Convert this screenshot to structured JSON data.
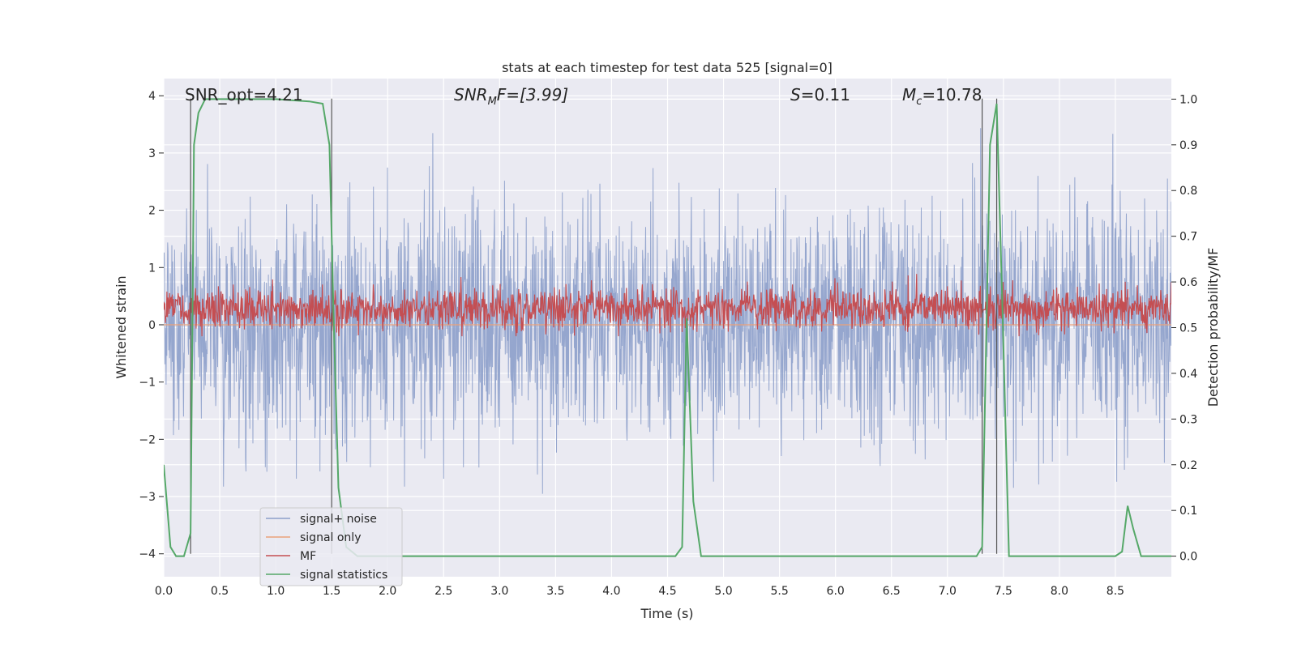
{
  "chart_data": {
    "type": "line",
    "title": "stats at each timestep for test data 525 [signal=0]",
    "xlabel": "Time (s)",
    "ylabel": "Whitened strain",
    "y2label": "Detection probability/MF",
    "xlim": [
      0.0,
      9.0
    ],
    "ylim": [
      -4.4,
      4.3
    ],
    "y2lim": [
      -0.045,
      1.045
    ],
    "xticks": [
      0.0,
      0.5,
      1.0,
      1.5,
      2.0,
      2.5,
      3.0,
      3.5,
      4.0,
      4.5,
      5.0,
      5.5,
      6.0,
      6.5,
      7.0,
      7.5,
      8.0,
      8.5
    ],
    "xtick_labels": [
      "0.0",
      "0.5",
      "1.0",
      "1.5",
      "2.0",
      "2.5",
      "3.0",
      "3.5",
      "4.0",
      "4.5",
      "5.0",
      "5.5",
      "6.0",
      "6.5",
      "7.0",
      "7.5",
      "8.0",
      "8.5"
    ],
    "yticks": [
      4,
      3,
      2,
      1,
      0,
      -1,
      -2,
      -3,
      -4
    ],
    "ytick_labels": [
      "4",
      "3",
      "2",
      "1",
      "0",
      "−1",
      "−2",
      "−3",
      "−4"
    ],
    "y2ticks": [
      1.0,
      0.9,
      0.8,
      0.7,
      0.6,
      0.5,
      0.4,
      0.3,
      0.2,
      0.1,
      0.0
    ],
    "y2tick_labels": [
      "1.0",
      "0.9",
      "0.8",
      "0.7",
      "0.6",
      "0.5",
      "0.4",
      "0.3",
      "0.2",
      "0.1",
      "0.0"
    ],
    "annotations": {
      "snr_opt": "SNR_opt=4.21",
      "snr_mf_main": "SNR",
      "snr_mf_sub": "M",
      "snr_mf_rest": "F=[3.99]",
      "s_main": "S",
      "s_rest": "=0.11",
      "mc_main": "M",
      "mc_sub": "c",
      "mc_rest": "=10.78"
    },
    "vertical_lines_x": [
      0.24,
      1.5,
      7.31,
      7.44
    ],
    "legend": {
      "placement": "lower-left",
      "entries": [
        "signal+ noise",
        "signal only",
        "MF",
        "signal statistics"
      ]
    },
    "series": [
      {
        "name": "signal+ noise",
        "color": "#8c9fca",
        "kind": "noise",
        "approx_range": [
          -3.5,
          3.9
        ],
        "typical_std": 1.0
      },
      {
        "name": "signal only",
        "color": "#e9a17b",
        "kind": "flat",
        "values": [
          0.0
        ]
      },
      {
        "name": "MF",
        "color": "#c44e52",
        "kind": "noise",
        "approx_center": 0.28,
        "approx_range": [
          -0.2,
          1.0
        ]
      },
      {
        "name": "signal statistics",
        "color": "#55a868",
        "axis": "right",
        "x": [
          0.0,
          0.06,
          0.11,
          0.18,
          0.24,
          0.27,
          0.31,
          0.37,
          0.42,
          0.55,
          0.8,
          1.0,
          1.3,
          1.42,
          1.48,
          1.52,
          1.56,
          1.63,
          1.73,
          2.0,
          3.0,
          4.0,
          4.57,
          4.63,
          4.67,
          4.73,
          4.8,
          4.9,
          6.0,
          7.0,
          7.26,
          7.31,
          7.38,
          7.44,
          7.49,
          7.55,
          7.65,
          8.0,
          8.5,
          8.56,
          8.61,
          8.66,
          8.73,
          8.8,
          9.0
        ],
        "values": [
          0.2,
          0.02,
          0.0,
          0.0,
          0.05,
          0.9,
          0.97,
          1.0,
          1.0,
          1.0,
          1.0,
          1.0,
          0.995,
          0.99,
          0.9,
          0.5,
          0.15,
          0.02,
          0.0,
          0.0,
          0.0,
          0.0,
          0.0,
          0.02,
          0.52,
          0.12,
          0.0,
          0.0,
          0.0,
          0.0,
          0.0,
          0.02,
          0.9,
          0.99,
          0.55,
          0.0,
          0.0,
          0.0,
          0.0,
          0.01,
          0.11,
          0.06,
          0.0,
          0.0,
          0.0
        ]
      }
    ]
  }
}
